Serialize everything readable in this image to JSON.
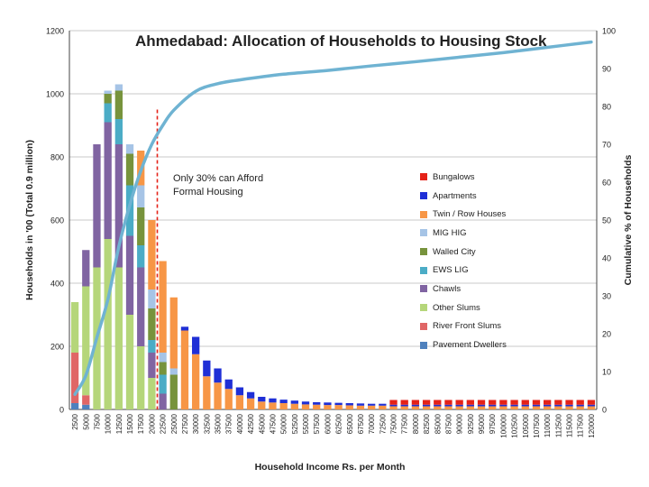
{
  "chart_data": {
    "type": "bar",
    "stacked": true,
    "title": "Ahmedabad: Allocation of Households to Housing Stock",
    "xlabel": "Household Income Rs. per Month",
    "ylabel": "Households in '00 (Total 0.9 million)",
    "y2label": "Cumulative % of Households",
    "ylim": [
      0,
      1200
    ],
    "y2lim": [
      0,
      100
    ],
    "yticks": [
      0,
      200,
      400,
      600,
      800,
      1000,
      1200
    ],
    "y2ticks": [
      0,
      10,
      20,
      30,
      40,
      50,
      60,
      70,
      80,
      90,
      100
    ],
    "categories": [
      "2500",
      "5000",
      "7500",
      "10000",
      "12500",
      "15000",
      "17500",
      "20000",
      "22500",
      "25000",
      "27500",
      "30000",
      "32500",
      "35000",
      "37500",
      "40000",
      "42500",
      "45000",
      "47500",
      "50000",
      "52500",
      "55000",
      "57500",
      "60000",
      "62500",
      "65000",
      "67500",
      "70000",
      "72500",
      "75000",
      "77500",
      "80000",
      "82500",
      "85000",
      "87500",
      "90000",
      "92500",
      "95000",
      "97500",
      "100000",
      "102500",
      "105000",
      "107500",
      "110000",
      "112500",
      "115000",
      "117500",
      "120000"
    ],
    "legend_position": "right",
    "series": [
      {
        "name": "Pavement Dwellers",
        "color": "#4f81bd",
        "values": [
          20,
          15,
          0,
          0,
          0,
          0,
          0,
          0,
          0,
          0,
          0,
          0,
          0,
          0,
          0,
          0,
          0,
          0,
          0,
          0,
          0,
          0,
          0,
          0,
          0,
          0,
          0,
          0,
          0,
          0,
          0,
          0,
          0,
          0,
          0,
          0,
          0,
          0,
          0,
          0,
          0,
          0,
          0,
          0,
          0,
          0,
          0,
          0
        ]
      },
      {
        "name": "River Front Slums",
        "color": "#e06666",
        "values": [
          160,
          30,
          0,
          0,
          0,
          0,
          0,
          0,
          0,
          0,
          0,
          0,
          0,
          0,
          0,
          0,
          0,
          0,
          0,
          0,
          0,
          0,
          0,
          0,
          0,
          0,
          0,
          0,
          0,
          0,
          0,
          0,
          0,
          0,
          0,
          0,
          0,
          0,
          0,
          0,
          0,
          0,
          0,
          0,
          0,
          0,
          0,
          0
        ]
      },
      {
        "name": "Other Slums",
        "color": "#b5d67a",
        "values": [
          160,
          345,
          450,
          540,
          450,
          300,
          200,
          100,
          0,
          0,
          0,
          0,
          0,
          0,
          0,
          0,
          0,
          0,
          0,
          0,
          0,
          0,
          0,
          0,
          0,
          0,
          0,
          0,
          0,
          0,
          0,
          0,
          0,
          0,
          0,
          0,
          0,
          0,
          0,
          0,
          0,
          0,
          0,
          0,
          0,
          0,
          0,
          0
        ]
      },
      {
        "name": "Chawls",
        "color": "#8064a2",
        "values": [
          0,
          115,
          390,
          370,
          390,
          250,
          250,
          80,
          50,
          0,
          0,
          0,
          0,
          0,
          0,
          0,
          0,
          0,
          0,
          0,
          0,
          0,
          0,
          0,
          0,
          0,
          0,
          0,
          0,
          0,
          0,
          0,
          0,
          0,
          0,
          0,
          0,
          0,
          0,
          0,
          0,
          0,
          0,
          0,
          0,
          0,
          0,
          0
        ]
      },
      {
        "name": "EWS LIG",
        "color": "#4bacc6",
        "values": [
          0,
          0,
          0,
          60,
          80,
          160,
          70,
          40,
          60,
          0,
          0,
          0,
          0,
          0,
          0,
          0,
          0,
          0,
          0,
          0,
          0,
          0,
          0,
          0,
          0,
          0,
          0,
          0,
          0,
          0,
          0,
          0,
          0,
          0,
          0,
          0,
          0,
          0,
          0,
          0,
          0,
          0,
          0,
          0,
          0,
          0,
          0,
          0
        ]
      },
      {
        "name": "Walled City",
        "color": "#77933c",
        "values": [
          0,
          0,
          0,
          30,
          90,
          100,
          120,
          100,
          40,
          110,
          0,
          0,
          0,
          0,
          0,
          0,
          0,
          0,
          0,
          0,
          0,
          0,
          0,
          0,
          0,
          0,
          0,
          0,
          0,
          0,
          0,
          0,
          0,
          0,
          0,
          0,
          0,
          0,
          0,
          0,
          0,
          0,
          0,
          0,
          0,
          0,
          0,
          0
        ]
      },
      {
        "name": "MIG HIG",
        "color": "#a6c4e6",
        "values": [
          0,
          0,
          0,
          10,
          20,
          30,
          70,
          60,
          30,
          20,
          0,
          0,
          0,
          0,
          0,
          0,
          0,
          0,
          0,
          0,
          0,
          0,
          0,
          0,
          0,
          0,
          0,
          0,
          0,
          0,
          0,
          0,
          0,
          0,
          0,
          0,
          0,
          0,
          0,
          0,
          0,
          0,
          0,
          0,
          0,
          0,
          0,
          0
        ]
      },
      {
        "name": "Twin / Row Houses",
        "color": "#f79646",
        "values": [
          0,
          0,
          0,
          0,
          0,
          0,
          110,
          220,
          290,
          225,
          250,
          175,
          105,
          85,
          65,
          45,
          35,
          25,
          22,
          20,
          18,
          16,
          15,
          14,
          14,
          13,
          12,
          12,
          12,
          10,
          10,
          10,
          10,
          10,
          10,
          10,
          10,
          10,
          10,
          10,
          10,
          10,
          10,
          10,
          10,
          10,
          10,
          10
        ]
      },
      {
        "name": "Apartments",
        "color": "#1f2fd6",
        "values": [
          0,
          0,
          0,
          0,
          0,
          0,
          0,
          0,
          0,
          0,
          12,
          55,
          50,
          45,
          30,
          25,
          20,
          15,
          13,
          11,
          10,
          9,
          8,
          8,
          7,
          7,
          7,
          6,
          6,
          5,
          5,
          5,
          5,
          5,
          5,
          5,
          5,
          5,
          5,
          5,
          5,
          5,
          5,
          5,
          5,
          5,
          5,
          5
        ]
      },
      {
        "name": "Bungalows",
        "color": "#e52218",
        "values": [
          0,
          0,
          0,
          0,
          0,
          0,
          0,
          0,
          0,
          0,
          0,
          0,
          0,
          0,
          0,
          0,
          0,
          0,
          0,
          0,
          0,
          0,
          0,
          0,
          0,
          0,
          0,
          0,
          0,
          15,
          15,
          15,
          15,
          15,
          15,
          15,
          15,
          15,
          15,
          15,
          15,
          15,
          15,
          15,
          15,
          15,
          15,
          15
        ]
      }
    ],
    "cumulative": {
      "name": "Cumulative % of Households",
      "color": "#6fb3d2",
      "x": [
        2500,
        5000,
        7500,
        10000,
        12500,
        15000,
        17500,
        20000,
        22500,
        25000,
        30000,
        35000,
        40000,
        50000,
        60000,
        70000,
        80000,
        90000,
        100000,
        110000,
        120000
      ],
      "values": [
        4,
        9,
        19,
        29,
        43,
        54,
        63,
        70,
        75,
        79,
        84,
        86,
        87,
        88.5,
        89.5,
        90.7,
        91.8,
        93,
        94.2,
        95.6,
        97
      ]
    },
    "threshold": {
      "x": 21250,
      "label": "Only 30% can Afford Formal Housing"
    }
  }
}
